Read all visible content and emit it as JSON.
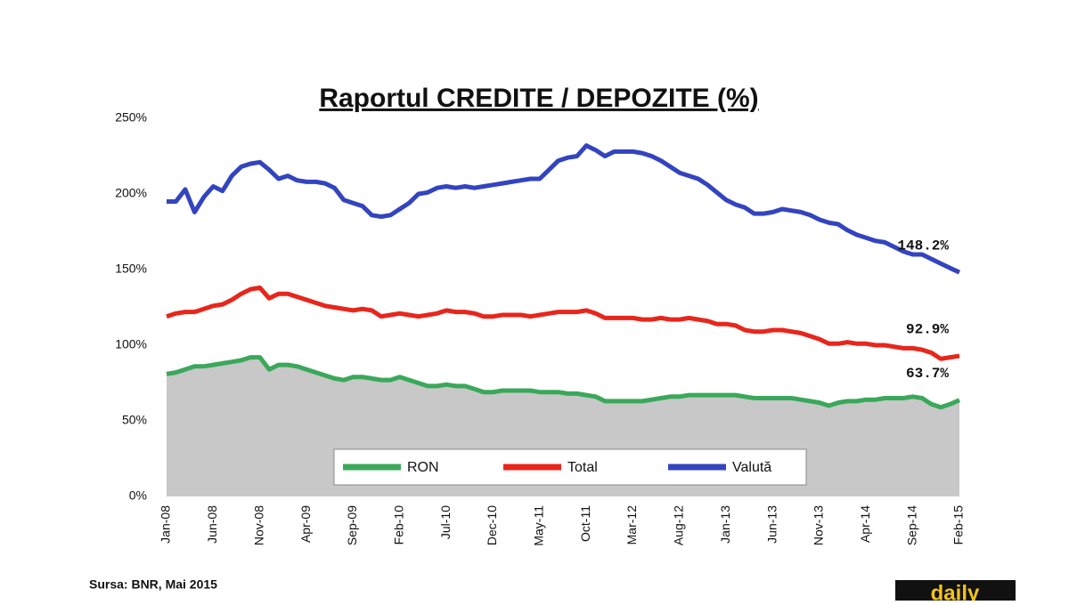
{
  "chart_data": {
    "type": "line",
    "title": "Raportul CREDITE / DEPOZITE (%)",
    "source": "Sursa: BNR, Mai 2015",
    "logo": "daily",
    "categories": [
      "Jan-08",
      null,
      null,
      null,
      null,
      "Jun-08",
      null,
      null,
      null,
      null,
      "Nov-08",
      null,
      null,
      null,
      null,
      "Apr-09",
      null,
      null,
      null,
      null,
      "Sep-09",
      null,
      null,
      null,
      null,
      "Feb-10",
      null,
      null,
      null,
      null,
      "Jul-10",
      null,
      null,
      null,
      null,
      "Dec-10",
      null,
      null,
      null,
      null,
      "May-11",
      null,
      null,
      null,
      null,
      "Oct-11",
      null,
      null,
      null,
      null,
      "Mar-12",
      null,
      null,
      null,
      null,
      "Aug-12",
      null,
      null,
      null,
      null,
      "Jan-13",
      null,
      null,
      null,
      null,
      "Jun-13",
      null,
      null,
      null,
      null,
      "Nov-13",
      null,
      null,
      null,
      null,
      "Apr-14",
      null,
      null,
      null,
      null,
      "Sep-14",
      null,
      null,
      null,
      null,
      "Feb-15"
    ],
    "ylim": [
      0,
      250
    ],
    "yticks": [
      {
        "value": 0,
        "label": "0%"
      },
      {
        "value": 50,
        "label": "50%"
      },
      {
        "value": 100,
        "label": "100%"
      },
      {
        "value": 150,
        "label": "150%"
      },
      {
        "value": 200,
        "label": "200%"
      },
      {
        "value": 250,
        "label": "250%"
      }
    ],
    "legend": "bottom",
    "series": [
      {
        "name": "RON",
        "color": "#3aa85a",
        "fill": "#c8c8c8",
        "values": [
          81,
          82,
          84,
          86,
          86,
          87,
          88,
          89,
          90,
          92,
          92,
          84,
          87,
          87,
          86,
          84,
          82,
          80,
          78,
          77,
          79,
          79,
          78,
          77,
          77,
          79,
          77,
          75,
          73,
          73,
          74,
          73,
          73,
          71,
          69,
          69,
          70,
          70,
          70,
          70,
          69,
          69,
          69,
          68,
          68,
          67,
          66,
          63,
          63,
          63,
          63,
          63,
          64,
          65,
          66,
          66,
          67,
          67,
          67,
          67,
          67,
          67,
          66,
          65,
          65,
          65,
          65,
          65,
          64,
          63,
          62,
          60,
          62,
          63,
          63,
          64,
          64,
          65,
          65,
          65,
          66,
          65,
          61,
          59,
          61,
          63.7
        ],
        "value_labels": [
          null,
          null,
          null,
          null,
          null,
          null,
          null,
          null,
          null,
          null,
          null,
          null,
          null,
          null,
          null,
          null,
          null,
          null,
          null,
          null,
          null,
          null,
          null,
          null,
          null,
          null,
          null,
          null,
          null,
          null,
          null,
          null,
          null,
          null,
          null,
          null,
          null,
          null,
          null,
          null,
          null,
          null,
          null,
          null,
          null,
          null,
          null,
          null,
          null,
          null,
          null,
          null,
          null,
          null,
          null,
          null,
          null,
          null,
          null,
          null,
          null,
          null,
          null,
          null,
          null,
          null,
          null,
          null,
          null,
          null,
          null,
          null,
          null,
          null,
          null,
          null,
          null,
          null,
          null,
          null,
          null,
          null,
          null,
          null,
          null,
          "63.7%"
        ]
      },
      {
        "name": "Total",
        "color": "#e8261c",
        "values": [
          119,
          121,
          122,
          122,
          124,
          126,
          127,
          130,
          134,
          137,
          138,
          131,
          134,
          134,
          132,
          130,
          128,
          126,
          125,
          124,
          123,
          124,
          123,
          119,
          120,
          121,
          120,
          119,
          120,
          121,
          123,
          122,
          122,
          121,
          119,
          119,
          120,
          120,
          120,
          119,
          120,
          121,
          122,
          122,
          122,
          123,
          121,
          118,
          118,
          118,
          118,
          117,
          117,
          118,
          117,
          117,
          118,
          117,
          116,
          114,
          114,
          113,
          110,
          109,
          109,
          110,
          110,
          109,
          108,
          106,
          104,
          101,
          101,
          102,
          101,
          101,
          100,
          100,
          99,
          98,
          98,
          97,
          95,
          91,
          92,
          92.9
        ],
        "value_labels": [
          null,
          null,
          null,
          null,
          null,
          null,
          null,
          null,
          null,
          null,
          null,
          null,
          null,
          null,
          null,
          null,
          null,
          null,
          null,
          null,
          null,
          null,
          null,
          null,
          null,
          null,
          null,
          null,
          null,
          null,
          null,
          null,
          null,
          null,
          null,
          null,
          null,
          null,
          null,
          null,
          null,
          null,
          null,
          null,
          null,
          null,
          null,
          null,
          null,
          null,
          null,
          null,
          null,
          null,
          null,
          null,
          null,
          null,
          null,
          null,
          null,
          null,
          null,
          null,
          null,
          null,
          null,
          null,
          null,
          null,
          null,
          null,
          null,
          null,
          null,
          null,
          null,
          null,
          null,
          null,
          null,
          null,
          null,
          null,
          null,
          "92.9%"
        ]
      },
      {
        "name": "Valută",
        "color": "#3344c0",
        "values": [
          195,
          195,
          203,
          188,
          198,
          205,
          202,
          212,
          218,
          220,
          221,
          216,
          210,
          212,
          209,
          208,
          208,
          207,
          204,
          196,
          194,
          192,
          186,
          185,
          186,
          190,
          194,
          200,
          201,
          204,
          205,
          204,
          205,
          204,
          205,
          206,
          207,
          208,
          209,
          210,
          210,
          216,
          222,
          224,
          225,
          232,
          229,
          225,
          228,
          228,
          228,
          227,
          225,
          222,
          218,
          214,
          212,
          210,
          206,
          201,
          196,
          193,
          191,
          187,
          187,
          188,
          190,
          189,
          188,
          186,
          183,
          181,
          180,
          176,
          173,
          171,
          169,
          168,
          165,
          162,
          160,
          160,
          157,
          154,
          151,
          148.2
        ],
        "value_labels": [
          null,
          null,
          null,
          null,
          null,
          null,
          null,
          null,
          null,
          null,
          null,
          null,
          null,
          null,
          null,
          null,
          null,
          null,
          null,
          null,
          null,
          null,
          null,
          null,
          null,
          null,
          null,
          null,
          null,
          null,
          null,
          null,
          null,
          null,
          null,
          null,
          null,
          null,
          null,
          null,
          null,
          null,
          null,
          null,
          null,
          null,
          null,
          null,
          null,
          null,
          null,
          null,
          null,
          null,
          null,
          null,
          null,
          null,
          null,
          null,
          null,
          null,
          null,
          null,
          null,
          null,
          null,
          null,
          null,
          null,
          null,
          null,
          null,
          null,
          null,
          null,
          null,
          null,
          null,
          null,
          null,
          null,
          null,
          null,
          null,
          "148.2%"
        ]
      }
    ]
  }
}
